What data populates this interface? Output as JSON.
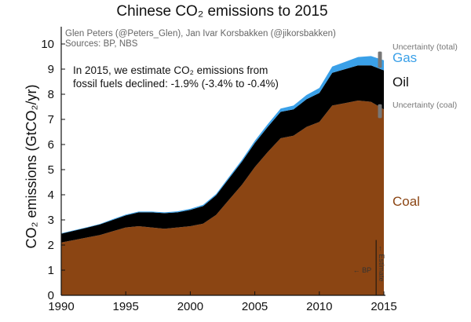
{
  "chart_data": {
    "type": "area",
    "title": "Chinese CO₂ emissions to 2015",
    "credit": "Glen Peters (@Peters_Glen), Jan Ivar Korsbakken (@jikorsbakken)",
    "sources": "Sources: BP, NBS",
    "annotation_line1": "In 2015, we estimate CO₂ emissions from",
    "annotation_line2": "fossil fuels declined: -1.9% (-3.4% to -0.4%)",
    "ylabel": "CO₂ emissions (GtCO₂/yr)",
    "xlabel": "",
    "xlim": [
      1990,
      2015
    ],
    "ylim": [
      0,
      10.5
    ],
    "x_ticks": [
      1990,
      1995,
      2000,
      2005,
      2010,
      2015
    ],
    "y_ticks": [
      0,
      1,
      2,
      3,
      4,
      5,
      6,
      7,
      8,
      9,
      10
    ],
    "x": [
      1990,
      1991,
      1992,
      1993,
      1994,
      1995,
      1996,
      1997,
      1998,
      1999,
      2000,
      2001,
      2002,
      2003,
      2004,
      2005,
      2006,
      2007,
      2008,
      2009,
      2010,
      2011,
      2012,
      2013,
      2014,
      2015
    ],
    "series": [
      {
        "name": "Coal",
        "color": "#8B4513",
        "values": [
          2.1,
          2.2,
          2.3,
          2.4,
          2.55,
          2.7,
          2.75,
          2.7,
          2.65,
          2.7,
          2.75,
          2.85,
          3.2,
          3.8,
          4.4,
          5.1,
          5.7,
          6.25,
          6.35,
          6.7,
          6.9,
          7.55,
          7.65,
          7.75,
          7.7,
          7.4
        ]
      },
      {
        "name": "Oil",
        "color": "#000000",
        "values": [
          0.35,
          0.37,
          0.39,
          0.42,
          0.45,
          0.48,
          0.55,
          0.6,
          0.62,
          0.6,
          0.65,
          0.7,
          0.78,
          0.85,
          0.92,
          0.96,
          1.0,
          1.05,
          1.05,
          1.1,
          1.15,
          1.3,
          1.35,
          1.4,
          1.45,
          1.55
        ]
      },
      {
        "name": "Gas",
        "color": "#3aa0e8",
        "values": [
          0.02,
          0.02,
          0.02,
          0.02,
          0.03,
          0.03,
          0.03,
          0.03,
          0.03,
          0.04,
          0.04,
          0.05,
          0.05,
          0.06,
          0.07,
          0.09,
          0.11,
          0.13,
          0.15,
          0.17,
          0.2,
          0.25,
          0.29,
          0.33,
          0.37,
          0.4
        ]
      }
    ],
    "legend": {
      "uncertainty_total": "Uncertainty (total)",
      "uncertainty_coal": "Uncertainty (coal)",
      "gas": "Gas",
      "oil": "Oil",
      "coal": "Coal"
    },
    "bp_label": "← BP",
    "estimate_label": "← Estimate",
    "estimate_divider_year": 2014.4,
    "uncertainty_bars": [
      {
        "name": "total",
        "low": 9.05,
        "high": 9.7
      },
      {
        "name": "coal",
        "low": 7.05,
        "high": 7.6
      }
    ]
  }
}
